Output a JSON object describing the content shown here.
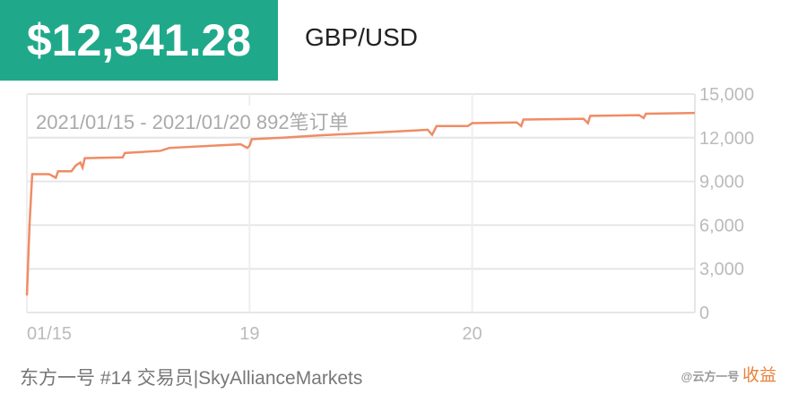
{
  "header": {
    "price": "$12,341.28",
    "pair": "GBP/USD"
  },
  "chart_data": {
    "type": "line",
    "title": "2021/01/15 - 2021/01/20 892笔订单",
    "x": [
      0,
      0.012,
      0.024,
      0.1,
      0.13,
      0.14,
      0.2,
      0.22,
      0.24,
      0.25,
      0.26,
      0.43,
      0.44,
      0.6,
      0.64,
      0.9,
      0.96,
      0.99,
      1.0,
      1.01,
      1.15,
      1.3,
      1.5,
      1.75,
      1.8,
      1.82,
      1.84,
      1.98,
      2.0,
      2.2,
      2.22,
      2.23,
      2.5,
      2.52,
      2.53,
      2.75,
      2.77,
      2.78,
      3.0
    ],
    "series": [
      {
        "color": "#ef8c66",
        "values": [
          1170,
          6100,
          9500,
          9500,
          9250,
          9700,
          9700,
          10100,
          10300,
          9950,
          10600,
          10650,
          10950,
          11100,
          11300,
          11500,
          11550,
          11300,
          11450,
          11900,
          12000,
          12150,
          12300,
          12500,
          12550,
          12200,
          12800,
          12800,
          13000,
          13050,
          12800,
          13250,
          13300,
          13000,
          13500,
          13550,
          13350,
          13650,
          13700
        ]
      }
    ],
    "xlim": [
      0,
      3
    ],
    "xticks": [
      {
        "value": 0,
        "label": "01/15"
      },
      {
        "value": 1,
        "label": "19"
      },
      {
        "value": 2,
        "label": "20"
      }
    ],
    "ylim": [
      0,
      15000
    ],
    "yticks": [
      {
        "value": 0,
        "label": "0"
      },
      {
        "value": 3000,
        "label": "3,000"
      },
      {
        "value": 6000,
        "label": "6,000"
      },
      {
        "value": 9000,
        "label": "9,000"
      },
      {
        "value": 12000,
        "label": "12,000"
      },
      {
        "value": 15000,
        "label": "15,000"
      }
    ],
    "grid": true
  },
  "footer": {
    "text": "东方一号 #14 交易员|SkyAllianceMarkets",
    "watermark": "@云方一号",
    "watermark_label": "收益"
  }
}
